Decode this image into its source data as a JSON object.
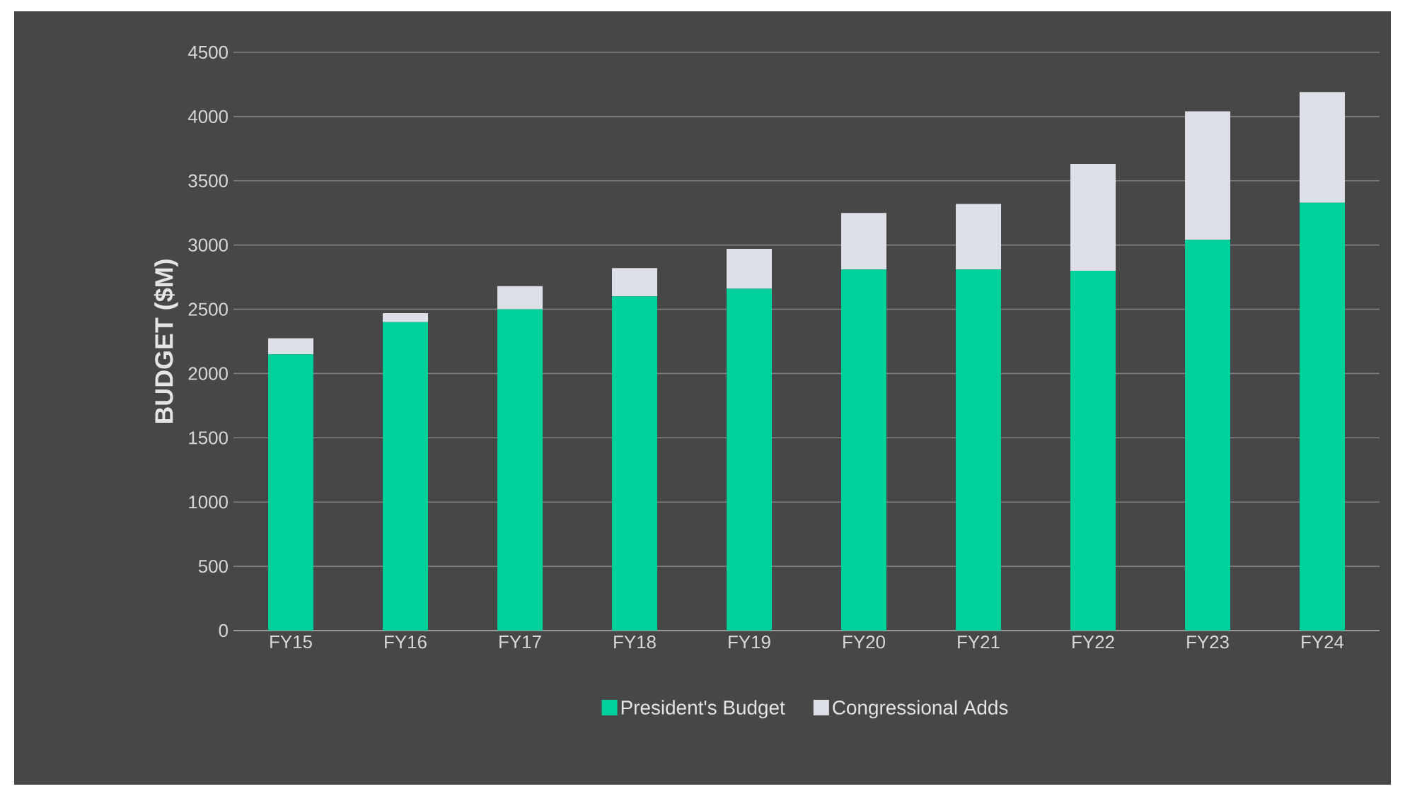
{
  "chart_data": {
    "type": "bar",
    "ylabel": "BUDGET ($M)",
    "categories": [
      "FY15",
      "FY16",
      "FY17",
      "FY18",
      "FY19",
      "FY20",
      "FY21",
      "FY22",
      "FY23",
      "FY24"
    ],
    "series": [
      {
        "name": "President's Budget",
        "color": "#00d09c",
        "values": [
          2150,
          2400,
          2500,
          2600,
          2660,
          2810,
          2810,
          2800,
          3040,
          3330
        ]
      },
      {
        "name": "Congressional Adds",
        "color": "#dde0e6",
        "values": [
          125,
          70,
          180,
          220,
          310,
          440,
          510,
          830,
          1000,
          860
        ]
      }
    ],
    "stacked": true,
    "ylim": [
      0,
      4500
    ],
    "yticks": [
      0,
      500,
      1000,
      1500,
      2000,
      2500,
      3000,
      3500,
      4000,
      4500
    ],
    "grid": "y",
    "legend": "bottom"
  }
}
